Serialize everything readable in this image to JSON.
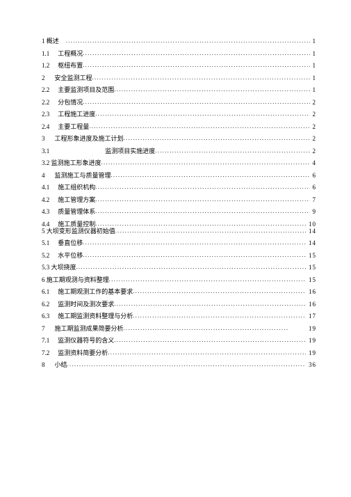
{
  "toc": [
    {
      "num": "1 概述",
      "gap": 10,
      "label": "",
      "page": "1"
    },
    {
      "num": "1.1",
      "gap": 12,
      "label": "工程概况",
      "page": "1"
    },
    {
      "num": "1.2",
      "gap": 12,
      "label": "枢纽布置",
      "page": "1"
    },
    {
      "num": "2",
      "gap": 14,
      "label": "安全监测工程",
      "page": "1"
    },
    {
      "num": "2.2",
      "gap": 12,
      "label": "主要监测项目及范围",
      "page": "1"
    },
    {
      "num": "2.2",
      "gap": 12,
      "label": "分包情况",
      "page": "2"
    },
    {
      "num": "2.3",
      "gap": 12,
      "label": "工程施工进度",
      "page": "2"
    },
    {
      "num": "2.4",
      "gap": 12,
      "label": "主要工程量",
      "page": "2"
    },
    {
      "num": "3",
      "gap": 14,
      "label": "工程形象进度及施工计划",
      "page": "2"
    },
    {
      "num": "3.1",
      "gap": 80,
      "label": "监测项目实施进度",
      "page": "2"
    },
    {
      "num": "3.2 监测施工形象进度",
      "gap": 0,
      "label": "",
      "page": "4"
    },
    {
      "num": "4",
      "gap": 14,
      "label": "监测施工与质量管理",
      "page": "6"
    },
    {
      "num": "4.1",
      "gap": 12,
      "label": "施工组织机构",
      "page": "6"
    },
    {
      "num": "4.2",
      "gap": 12,
      "label": "施工管理方案",
      "page": "7"
    },
    {
      "num": "4.3",
      "gap": 12,
      "label": "质量管理体系",
      "page": "9"
    },
    {
      "num": "4.4",
      "gap": 12,
      "label": "施工质量控制",
      "page": "10",
      "tight": true
    },
    {
      "num": "5 大坝变形监测仪器初始值",
      "gap": 0,
      "label": "",
      "page": "14"
    },
    {
      "num": "5.1",
      "gap": 12,
      "label": "垂直位移",
      "page": "14"
    },
    {
      "num": "5.2",
      "gap": 12,
      "label": "水平位移",
      "page": "15"
    },
    {
      "num": "5.3 大坝挠度",
      "gap": 0,
      "label": "",
      "page": "15"
    },
    {
      "num": "6 施工期观测与资料整理",
      "gap": 0,
      "label": "",
      "page": "15"
    },
    {
      "num": "6.1",
      "gap": 12,
      "label": "施工期观测工作的基本要求",
      "page": "16"
    },
    {
      "num": "6.2",
      "gap": 12,
      "label": "监测时间及测次要求",
      "page": "16"
    },
    {
      "num": "6.3",
      "gap": 12,
      "label": "施工期监测资料整理与分析",
      "page": "17"
    },
    {
      "num": "7",
      "gap": 14,
      "label": "施工期监测成果简要分析",
      "page": "19",
      "far": true
    },
    {
      "num": "7.1",
      "gap": 12,
      "label": "监测仪器符号的含义",
      "page": "19"
    },
    {
      "num": "7.2",
      "gap": 12,
      "label": "监测资料简要分析",
      "page": "19"
    },
    {
      "num": "8",
      "gap": 14,
      "label": "小结",
      "page": "36"
    }
  ]
}
